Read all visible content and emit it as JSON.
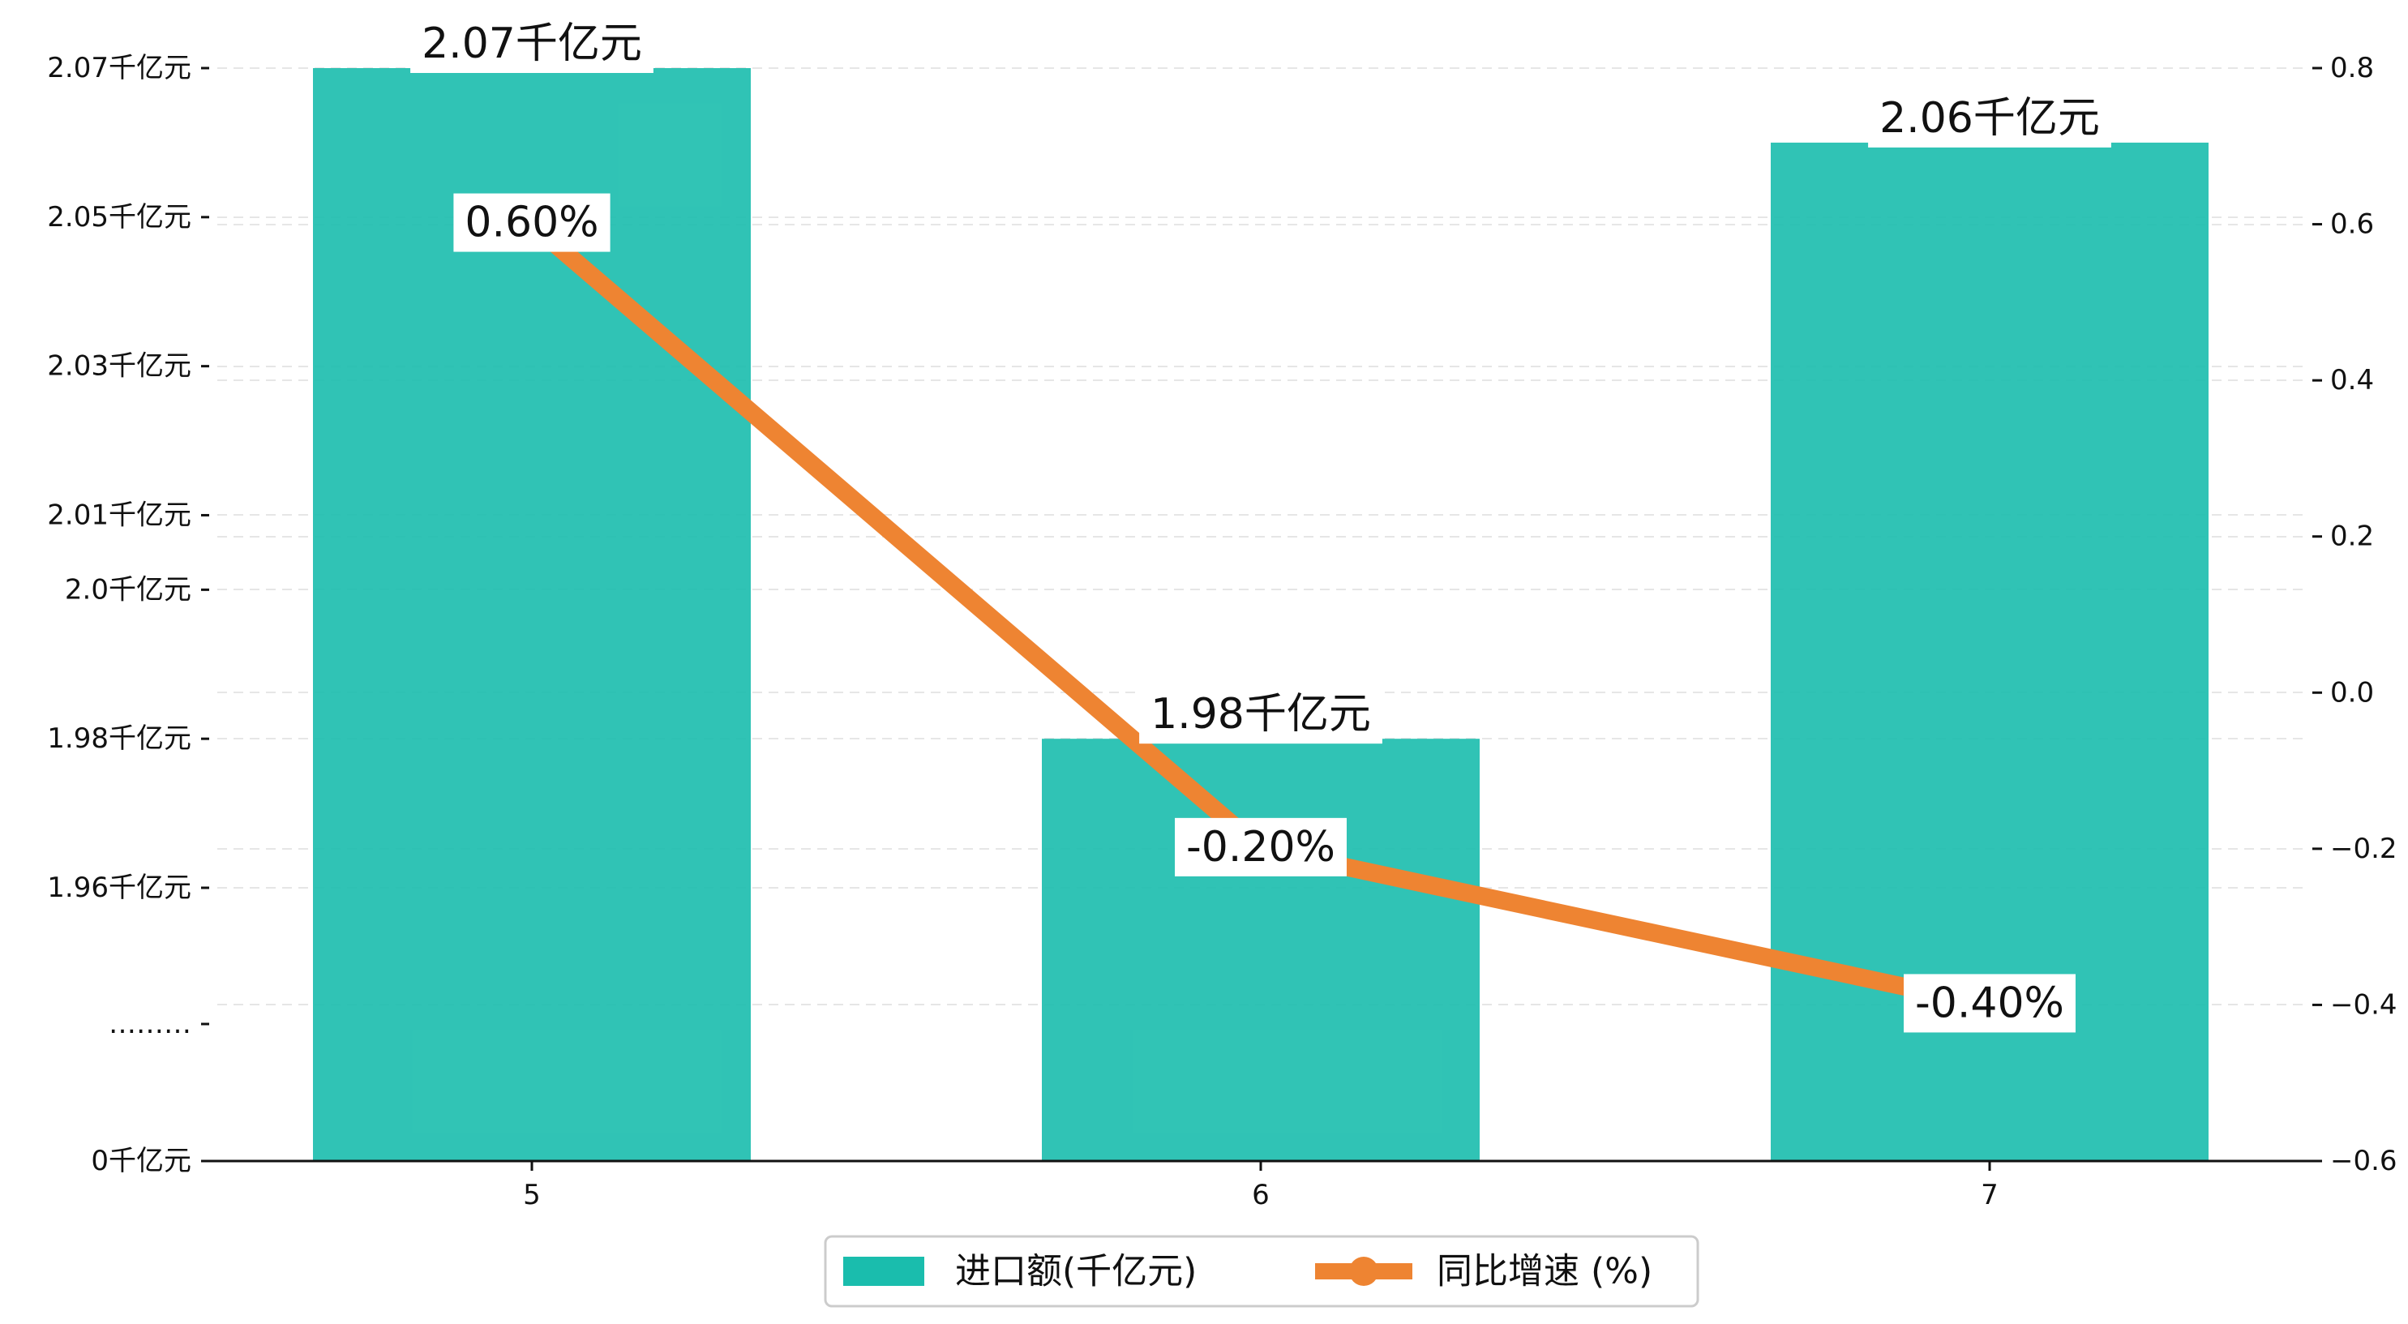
{
  "chart_data": {
    "type": "bar",
    "categories": [
      "5",
      "6",
      "7"
    ],
    "series": [
      {
        "name": "进口额(千亿元)",
        "type": "bar",
        "axis": "left",
        "values": [
          2.07,
          1.98,
          2.06
        ],
        "data_labels": [
          "2.07千亿元",
          "1.98千亿元",
          "2.06千亿元"
        ],
        "color": "#1ABDAD"
      },
      {
        "name": "同比增速 (%)",
        "type": "line",
        "axis": "right",
        "values": [
          0.6,
          -0.2,
          -0.4
        ],
        "data_labels": [
          "0.60%",
          "-0.20%",
          "-0.40%"
        ],
        "color": "#EE8432"
      }
    ],
    "left_axis": {
      "ticks": [
        {
          "value": 0,
          "label": "0千亿元"
        },
        {
          "value": null,
          "label": "………"
        },
        {
          "value": 1.96,
          "label": "1.96千亿元"
        },
        {
          "value": 1.98,
          "label": "1.98千亿元"
        },
        {
          "value": 2.0,
          "label": "2.0千亿元"
        },
        {
          "value": 2.01,
          "label": "2.01千亿元"
        },
        {
          "value": 2.03,
          "label": "2.03千亿元"
        },
        {
          "value": 2.05,
          "label": "2.05千亿元"
        },
        {
          "value": 2.07,
          "label": "2.07千亿元"
        }
      ],
      "broken": true
    },
    "right_axis": {
      "ylim": [
        -0.6,
        0.8
      ],
      "ticks": [
        -0.6,
        -0.4,
        -0.2,
        0.0,
        0.2,
        0.4,
        0.6,
        0.8
      ],
      "tick_labels": [
        "−0.6",
        "−0.4",
        "−0.2",
        "0.0",
        "0.2",
        "0.4",
        "0.6",
        "0.8"
      ]
    },
    "grid": true,
    "legend_position": "bottom-center"
  }
}
